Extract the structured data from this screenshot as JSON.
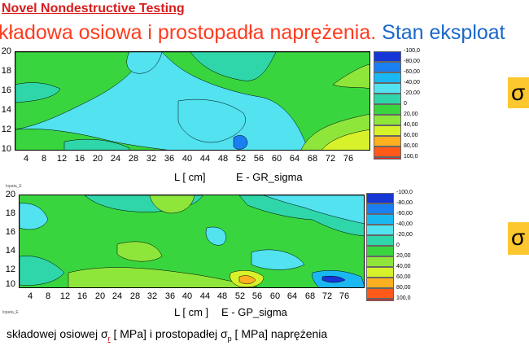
{
  "header": {
    "brand": "Novel Nondestructive Testing"
  },
  "title": {
    "part_red": "kładowa osiowa i prostopadła naprężenia.",
    "part_blue": "Stan eksploat"
  },
  "colors": {
    "brand_red": "#d81b1b",
    "title_red": "#ff3b1f",
    "title_blue": "#1a67c9",
    "badge": "#fdc72f"
  },
  "legend": {
    "labels": [
      "-100,0",
      "-80,00",
      "-60,00",
      "-40,00",
      "-20,00",
      "0",
      "20,00",
      "40,00",
      "60,00",
      "80,00",
      "100,0"
    ],
    "colors": [
      "#1636d6",
      "#1a7ff0",
      "#1ab8f2",
      "#52e2f0",
      "#2fd6a9",
      "#39d53f",
      "#8ee63a",
      "#d7f12a",
      "#ffb020",
      "#ff5a1a",
      "#ee1c1c"
    ]
  },
  "plot1": {
    "y_ticks": [
      "20",
      "18",
      "16",
      "14",
      "12",
      "10"
    ],
    "x_ticks": [
      "4",
      "8",
      "12",
      "16",
      "20",
      "24",
      "28",
      "32",
      "36",
      "40",
      "44",
      "48",
      "52",
      "56",
      "60",
      "64",
      "68",
      "72",
      "76"
    ],
    "xlabel": "L  [ cm]",
    "series_label": "E - GR_sigma"
  },
  "plot2": {
    "y_ticks": [
      "20",
      "18",
      "16",
      "14",
      "12",
      "10"
    ],
    "x_ticks": [
      "4",
      "8",
      "12",
      "16",
      "20",
      "24",
      "28",
      "32",
      "36",
      "40",
      "44",
      "48",
      "52",
      "56",
      "60",
      "64",
      "68",
      "72",
      "76"
    ],
    "xlabel": "L  [ cm ]",
    "series_label": "E  - GP_sigma",
    "tag_top": "lopata_E",
    "tag_bottom": "lopata_E"
  },
  "badges": {
    "top": "σ",
    "bottom": "σ"
  },
  "caption": {
    "pre": "składowej osiowej σ",
    "sub1": "r",
    "mid": " [ MPa] i prostopadłej σ",
    "sub2": "p",
    "post": " [ MPa] naprężenia"
  }
}
